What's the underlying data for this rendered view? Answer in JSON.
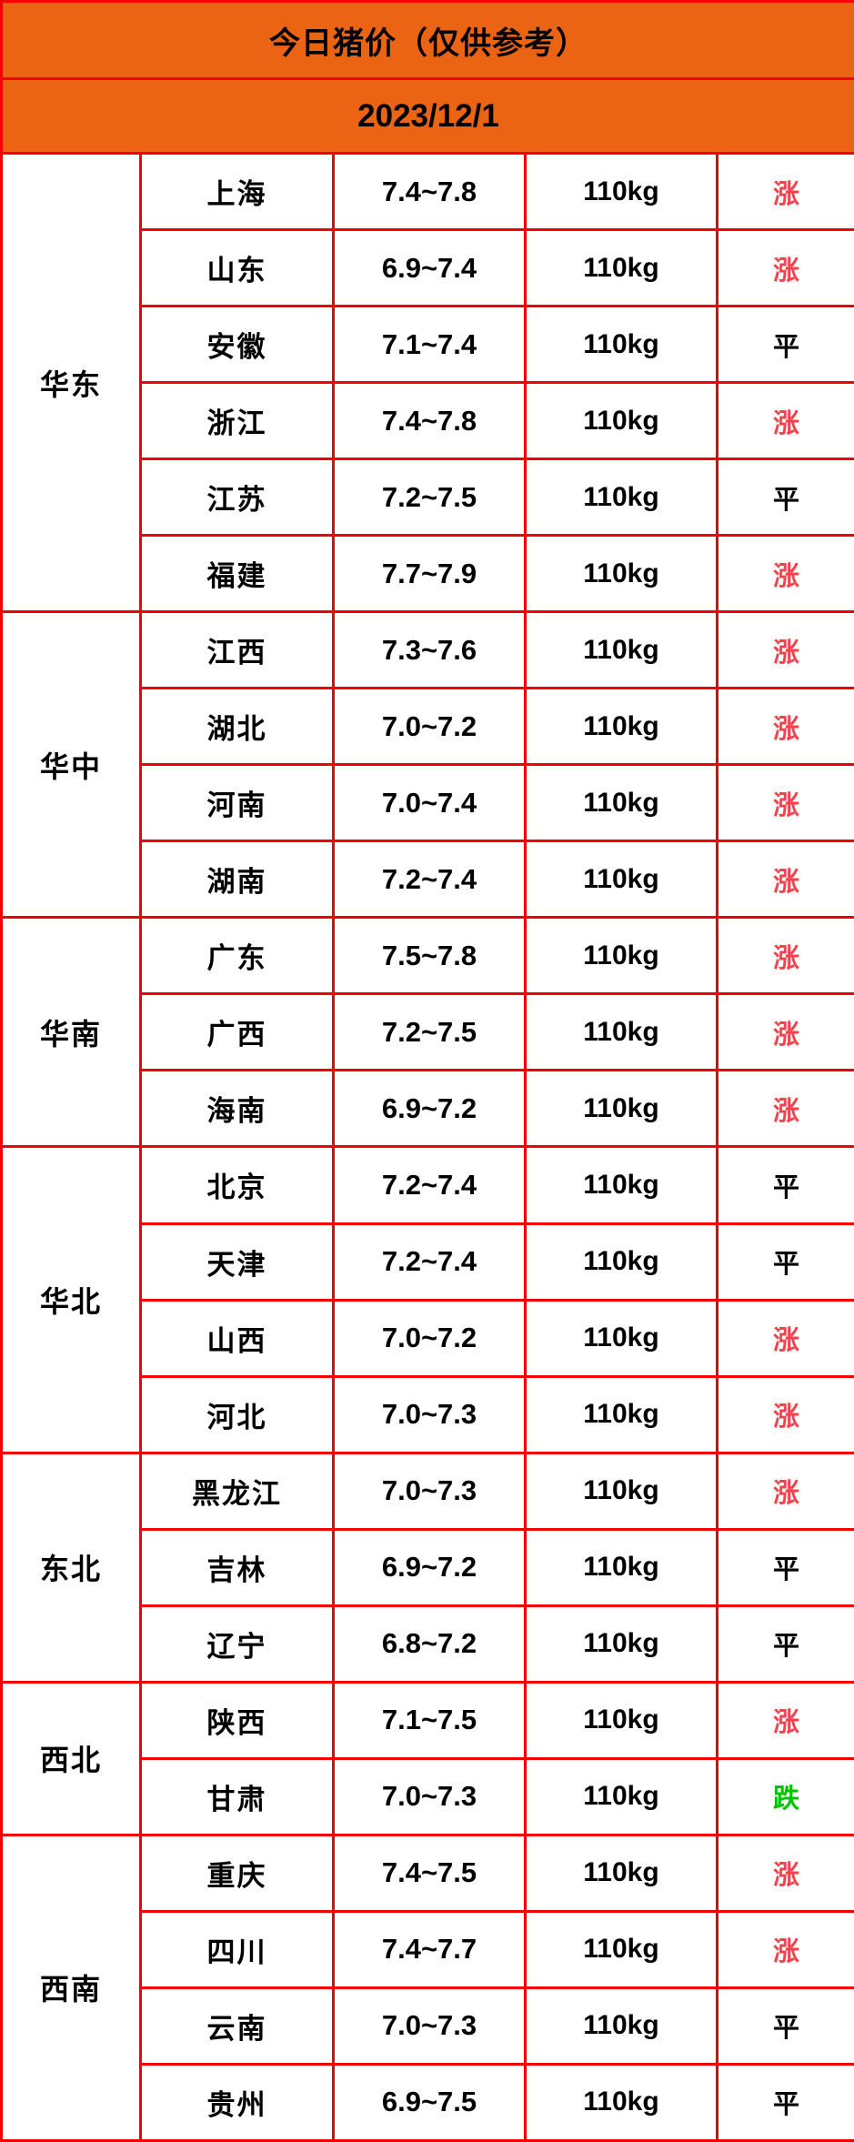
{
  "header": {
    "title": "今日猪价（仅供参考）",
    "date": "2023/12/1"
  },
  "weight_label": "110kg",
  "trend_labels": {
    "up": "涨",
    "flat": "平",
    "down": "跌"
  },
  "colors": {
    "header_bg": "#eb6414",
    "border": "#f40000",
    "up": "#fa414b",
    "flat": "#000000",
    "down": "#00c300"
  },
  "groups": [
    {
      "region": "华东",
      "rows": [
        {
          "province": "上海",
          "price": "7.4~7.8",
          "trend": "up"
        },
        {
          "province": "山东",
          "price": "6.9~7.4",
          "trend": "up"
        },
        {
          "province": "安徽",
          "price": "7.1~7.4",
          "trend": "flat"
        },
        {
          "province": "浙江",
          "price": "7.4~7.8",
          "trend": "up"
        },
        {
          "province": "江苏",
          "price": "7.2~7.5",
          "trend": "flat"
        },
        {
          "province": "福建",
          "price": "7.7~7.9",
          "trend": "up"
        }
      ]
    },
    {
      "region": "华中",
      "rows": [
        {
          "province": "江西",
          "price": "7.3~7.6",
          "trend": "up"
        },
        {
          "province": "湖北",
          "price": "7.0~7.2",
          "trend": "up"
        },
        {
          "province": "河南",
          "price": "7.0~7.4",
          "trend": "up"
        },
        {
          "province": "湖南",
          "price": "7.2~7.4",
          "trend": "up"
        }
      ]
    },
    {
      "region": "华南",
      "rows": [
        {
          "province": "广东",
          "price": "7.5~7.8",
          "trend": "up"
        },
        {
          "province": "广西",
          "price": "7.2~7.5",
          "trend": "up"
        },
        {
          "province": "海南",
          "price": "6.9~7.2",
          "trend": "up"
        }
      ]
    },
    {
      "region": "华北",
      "rows": [
        {
          "province": "北京",
          "price": "7.2~7.4",
          "trend": "flat"
        },
        {
          "province": "天津",
          "price": "7.2~7.4",
          "trend": "flat"
        },
        {
          "province": "山西",
          "price": "7.0~7.2",
          "trend": "up"
        },
        {
          "province": "河北",
          "price": "7.0~7.3",
          "trend": "up"
        }
      ]
    },
    {
      "region": "东北",
      "rows": [
        {
          "province": "黑龙江",
          "price": "7.0~7.3",
          "trend": "up"
        },
        {
          "province": "吉林",
          "price": "6.9~7.2",
          "trend": "flat"
        },
        {
          "province": "辽宁",
          "price": "6.8~7.2",
          "trend": "flat"
        }
      ]
    },
    {
      "region": "西北",
      "rows": [
        {
          "province": "陕西",
          "price": "7.1~7.5",
          "trend": "up"
        },
        {
          "province": "甘肃",
          "price": "7.0~7.3",
          "trend": "down"
        }
      ]
    },
    {
      "region": "西南",
      "rows": [
        {
          "province": "重庆",
          "price": "7.4~7.5",
          "trend": "up"
        },
        {
          "province": "四川",
          "price": "7.4~7.7",
          "trend": "up"
        },
        {
          "province": "云南",
          "price": "7.0~7.3",
          "trend": "flat"
        },
        {
          "province": "贵州",
          "price": "6.9~7.5",
          "trend": "flat"
        }
      ]
    }
  ]
}
